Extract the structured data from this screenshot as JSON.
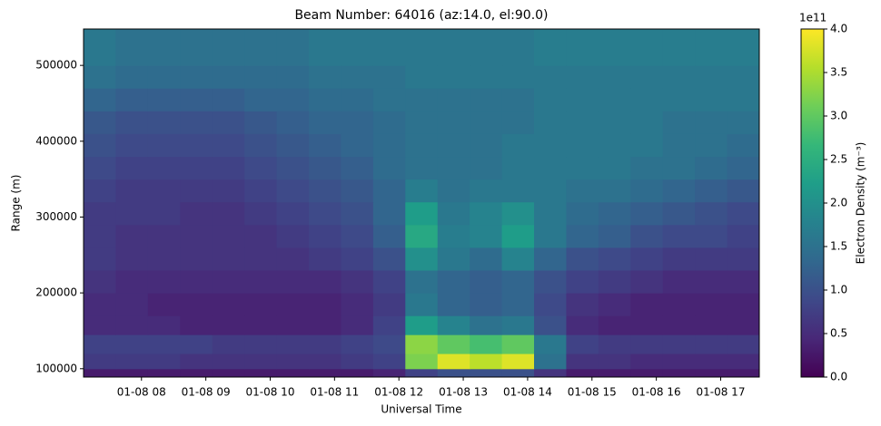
{
  "chart_data": {
    "type": "heatmap",
    "title": "Beam Number: 64016 (az:14.0, el:90.0)",
    "xlabel": "Universal Time",
    "ylabel": "Range (m)",
    "x_edges": [
      7.1,
      7.6,
      8.1,
      8.6,
      9.1,
      9.6,
      10.1,
      10.6,
      11.1,
      11.6,
      12.1,
      12.6,
      13.1,
      13.6,
      14.1,
      14.6,
      15.1,
      15.6,
      16.1,
      16.6,
      17.1,
      17.6
    ],
    "y_edges": [
      89000,
      100000,
      120000,
      145000,
      170000,
      200000,
      230000,
      260000,
      290000,
      320000,
      350000,
      380000,
      410000,
      440000,
      470000,
      500000,
      548000
    ],
    "values": [
      [
        0.3,
        0.3,
        0.3,
        0.3,
        0.3,
        0.3,
        0.3,
        0.3,
        0.3,
        0.4,
        0.8,
        1.0,
        1.0,
        1.0,
        0.6,
        0.3,
        0.3,
        0.3,
        0.3,
        0.3,
        0.3
      ],
      [
        0.7,
        0.7,
        0.7,
        0.6,
        0.6,
        0.6,
        0.6,
        0.6,
        0.7,
        0.8,
        3.2,
        3.8,
        3.6,
        3.8,
        1.5,
        0.6,
        0.6,
        0.5,
        0.5,
        0.5,
        0.5
      ],
      [
        0.8,
        0.8,
        0.8,
        0.8,
        0.7,
        0.7,
        0.7,
        0.7,
        0.8,
        0.9,
        3.3,
        3.0,
        2.8,
        3.0,
        1.6,
        0.8,
        0.7,
        0.7,
        0.7,
        0.7,
        0.7
      ],
      [
        0.5,
        0.5,
        0.5,
        0.4,
        0.4,
        0.4,
        0.4,
        0.4,
        0.5,
        0.8,
        2.2,
        1.8,
        1.5,
        1.6,
        1.0,
        0.5,
        0.4,
        0.4,
        0.4,
        0.4,
        0.4
      ],
      [
        0.5,
        0.5,
        0.4,
        0.4,
        0.4,
        0.4,
        0.4,
        0.4,
        0.5,
        0.7,
        1.6,
        1.3,
        1.2,
        1.3,
        0.9,
        0.6,
        0.5,
        0.4,
        0.4,
        0.4,
        0.4
      ],
      [
        0.6,
        0.5,
        0.5,
        0.5,
        0.5,
        0.5,
        0.5,
        0.5,
        0.6,
        0.8,
        1.5,
        1.3,
        1.2,
        1.3,
        1.0,
        0.8,
        0.7,
        0.6,
        0.5,
        0.5,
        0.5
      ],
      [
        0.7,
        0.6,
        0.6,
        0.6,
        0.6,
        0.6,
        0.6,
        0.7,
        0.8,
        1.0,
        2.0,
        1.6,
        1.4,
        1.8,
        1.3,
        1.0,
        0.9,
        0.8,
        0.7,
        0.7,
        0.7
      ],
      [
        0.7,
        0.6,
        0.6,
        0.6,
        0.6,
        0.6,
        0.7,
        0.8,
        0.9,
        1.2,
        2.4,
        1.7,
        1.8,
        2.2,
        1.6,
        1.3,
        1.2,
        1.0,
        0.9,
        0.9,
        0.8
      ],
      [
        0.7,
        0.7,
        0.7,
        0.6,
        0.6,
        0.7,
        0.8,
        0.9,
        1.0,
        1.3,
        2.2,
        1.6,
        1.8,
        2.0,
        1.6,
        1.4,
        1.3,
        1.2,
        1.1,
        1.0,
        0.9
      ],
      [
        0.8,
        0.7,
        0.7,
        0.7,
        0.7,
        0.8,
        0.9,
        1.0,
        1.1,
        1.3,
        1.7,
        1.5,
        1.6,
        1.6,
        1.6,
        1.5,
        1.5,
        1.4,
        1.3,
        1.2,
        1.1
      ],
      [
        0.9,
        0.8,
        0.8,
        0.8,
        0.8,
        0.9,
        1.0,
        1.1,
        1.2,
        1.4,
        1.5,
        1.5,
        1.5,
        1.6,
        1.6,
        1.6,
        1.6,
        1.5,
        1.5,
        1.4,
        1.3
      ],
      [
        1.0,
        0.9,
        0.9,
        0.9,
        0.9,
        1.0,
        1.1,
        1.2,
        1.3,
        1.4,
        1.5,
        1.5,
        1.5,
        1.6,
        1.6,
        1.6,
        1.6,
        1.6,
        1.5,
        1.5,
        1.4
      ],
      [
        1.1,
        1.0,
        1.0,
        1.0,
        1.0,
        1.1,
        1.2,
        1.3,
        1.3,
        1.4,
        1.5,
        1.5,
        1.5,
        1.5,
        1.6,
        1.6,
        1.6,
        1.6,
        1.5,
        1.5,
        1.5
      ],
      [
        1.3,
        1.2,
        1.2,
        1.2,
        1.2,
        1.3,
        1.3,
        1.4,
        1.4,
        1.5,
        1.5,
        1.5,
        1.5,
        1.5,
        1.6,
        1.6,
        1.6,
        1.6,
        1.6,
        1.6,
        1.6
      ],
      [
        1.5,
        1.4,
        1.4,
        1.4,
        1.4,
        1.4,
        1.4,
        1.5,
        1.5,
        1.5,
        1.6,
        1.6,
        1.6,
        1.6,
        1.6,
        1.6,
        1.6,
        1.6,
        1.6,
        1.6,
        1.6
      ],
      [
        1.6,
        1.5,
        1.5,
        1.5,
        1.5,
        1.5,
        1.5,
        1.6,
        1.6,
        1.6,
        1.6,
        1.6,
        1.6,
        1.6,
        1.7,
        1.7,
        1.7,
        1.7,
        1.7,
        1.7,
        1.7
      ]
    ],
    "xlim": [
      7.1,
      17.6
    ],
    "ylim": [
      89000,
      548000
    ],
    "xticks": [
      {
        "value": 8,
        "label": "01-08 08"
      },
      {
        "value": 9,
        "label": "01-08 09"
      },
      {
        "value": 10,
        "label": "01-08 10"
      },
      {
        "value": 11,
        "label": "01-08 11"
      },
      {
        "value": 12,
        "label": "01-08 12"
      },
      {
        "value": 13,
        "label": "01-08 13"
      },
      {
        "value": 14,
        "label": "01-08 14"
      },
      {
        "value": 15,
        "label": "01-08 15"
      },
      {
        "value": 16,
        "label": "01-08 16"
      },
      {
        "value": 17,
        "label": "01-08 17"
      }
    ],
    "yticks": [
      100000,
      200000,
      300000,
      400000,
      500000
    ],
    "colorbar": {
      "label": "Electron Density (m⁻³)",
      "offset_label": "1e11",
      "colormap": "viridis",
      "clim": [
        0,
        4
      ],
      "ticks": [
        {
          "value": 0,
          "label": "0.0"
        },
        {
          "value": 0.5,
          "label": "0.5"
        },
        {
          "value": 1,
          "label": "1.0"
        },
        {
          "value": 1.5,
          "label": "1.5"
        },
        {
          "value": 2,
          "label": "2.0"
        },
        {
          "value": 2.5,
          "label": "2.5"
        },
        {
          "value": 3,
          "label": "3.0"
        },
        {
          "value": 3.5,
          "label": "3.5"
        },
        {
          "value": 4,
          "label": "4.0"
        }
      ]
    }
  }
}
